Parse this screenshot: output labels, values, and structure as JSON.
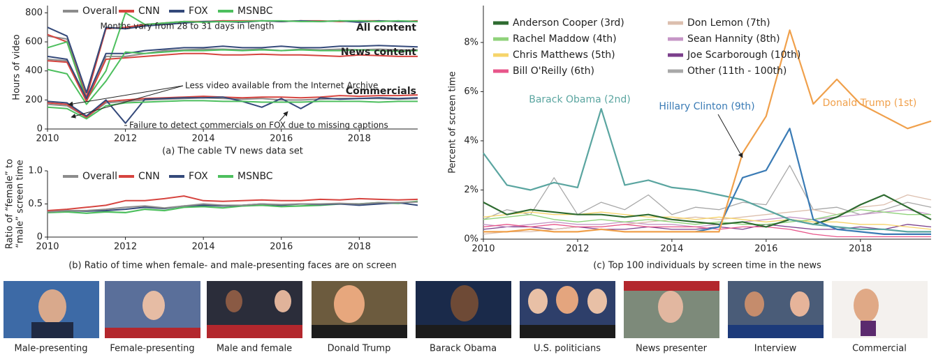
{
  "chart_data": [
    {
      "type": "line",
      "caption": "(a) The cable TV news data set",
      "ylabel": "Hours of video",
      "x": [
        2010,
        2010.5,
        2011,
        2011.5,
        2012,
        2012.5,
        2013,
        2013.5,
        2014,
        2014.5,
        2015,
        2015.5,
        2016,
        2016.5,
        2017,
        2017.5,
        2018,
        2018.5,
        2019,
        2019.5
      ],
      "xlim": [
        2010,
        2019.5
      ],
      "xticks": [
        2010,
        2012,
        2014,
        2016,
        2018
      ],
      "ylim": [
        0,
        850
      ],
      "yticks": [
        0,
        200,
        400,
        600,
        800
      ],
      "legend": [
        {
          "name": "Overall",
          "color": "#8c8c8c"
        },
        {
          "name": "CNN",
          "color": "#d6443f"
        },
        {
          "name": "FOX",
          "color": "#34497a"
        },
        {
          "name": "MSNBC",
          "color": "#4dbf5e"
        }
      ],
      "groups": [
        {
          "label": "All content",
          "series": [
            [
              640,
              620,
              250,
              700,
              690,
              720,
              730,
              740,
              740,
              745,
              740,
              745,
              740,
              745,
              740,
              745,
              740,
              740,
              745,
              740
            ],
            [
              650,
              600,
              220,
              690,
              700,
              720,
              730,
              740,
              740,
              745,
              745,
              745,
              740,
              745,
              745,
              740,
              745,
              745,
              740,
              745
            ],
            [
              700,
              640,
              250,
              700,
              690,
              710,
              720,
              730,
              740,
              740,
              735,
              745,
              740,
              745,
              740,
              745,
              735,
              745,
              740,
              740
            ],
            [
              560,
              600,
              200,
              400,
              800,
              720,
              730,
              740,
              735,
              740,
              740,
              745,
              745,
              740,
              740,
              745,
              745,
              740,
              745,
              740
            ]
          ]
        },
        {
          "label": "News content",
          "series": [
            [
              480,
              470,
              200,
              500,
              500,
              520,
              540,
              545,
              550,
              550,
              545,
              550,
              540,
              550,
              545,
              550,
              545,
              550,
              545,
              545
            ],
            [
              470,
              460,
              190,
              480,
              490,
              500,
              510,
              520,
              520,
              510,
              510,
              515,
              510,
              510,
              505,
              500,
              510,
              505,
              500,
              500
            ],
            [
              500,
              480,
              210,
              520,
              520,
              540,
              550,
              560,
              560,
              570,
              560,
              560,
              570,
              560,
              560,
              570,
              570,
              575,
              570,
              565
            ],
            [
              410,
              380,
              170,
              330,
              530,
              520,
              530,
              540,
              540,
              545,
              540,
              545,
              540,
              545,
              540,
              540,
              545,
              540,
              535,
              540
            ]
          ]
        },
        {
          "label": "Commercials",
          "series": [
            [
              170,
              160,
              80,
              180,
              190,
              200,
              205,
              210,
              215,
              210,
              205,
              210,
              200,
              200,
              205,
              210,
              210,
              210,
              205,
              210
            ],
            [
              180,
              170,
              80,
              190,
              200,
              210,
              215,
              220,
              225,
              220,
              215,
              220,
              220,
              215,
              220,
              230,
              225,
              230,
              230,
              235
            ],
            [
              190,
              180,
              90,
              200,
              40,
              205,
              210,
              215,
              215,
              220,
              190,
              150,
              210,
              140,
              215,
              205,
              210,
              215,
              210,
              215
            ],
            [
              150,
              140,
              70,
              160,
              180,
              185,
              190,
              195,
              195,
              190,
              190,
              185,
              185,
              185,
              190,
              190,
              190,
              185,
              190,
              190
            ]
          ]
        }
      ],
      "annotations": [
        "Months vary from 28 to 31 days in length",
        "Less video available from the Internet Archive",
        "Failure to detect commercials on FOX due to missing captions"
      ]
    },
    {
      "type": "line",
      "caption": "(b) Ratio of time when female- and male-presenting faces are on screen",
      "ylabel": [
        "Ratio of “female” to",
        "“male” screen time"
      ],
      "x": [
        2010,
        2010.5,
        2011,
        2011.5,
        2012,
        2012.5,
        2013,
        2013.5,
        2014,
        2014.5,
        2015,
        2015.5,
        2016,
        2016.5,
        2017,
        2017.5,
        2018,
        2018.5,
        2019,
        2019.5
      ],
      "xlim": [
        2010,
        2019.5
      ],
      "xticks": [
        2010,
        2012,
        2014,
        2016,
        2018
      ],
      "ylim": [
        0,
        1
      ],
      "yticks": [
        0,
        0.5,
        {
          "value": 1,
          "label": "1.0"
        }
      ],
      "series": [
        {
          "name": "Overall",
          "color": "#8c8c8c",
          "values": [
            0.38,
            0.4,
            0.4,
            0.42,
            0.45,
            0.47,
            0.44,
            0.47,
            0.5,
            0.48,
            0.48,
            0.5,
            0.49,
            0.5,
            0.5,
            0.51,
            0.5,
            0.52,
            0.52,
            0.53
          ]
        },
        {
          "name": "CNN",
          "color": "#d6443f",
          "values": [
            0.4,
            0.42,
            0.45,
            0.48,
            0.55,
            0.55,
            0.58,
            0.62,
            0.55,
            0.54,
            0.55,
            0.56,
            0.55,
            0.55,
            0.57,
            0.56,
            0.58,
            0.57,
            0.56,
            0.57
          ]
        },
        {
          "name": "FOX",
          "color": "#34497a",
          "values": [
            0.38,
            0.4,
            0.39,
            0.4,
            0.42,
            0.45,
            0.43,
            0.47,
            0.48,
            0.47,
            0.48,
            0.5,
            0.48,
            0.5,
            0.49,
            0.5,
            0.48,
            0.5,
            0.52,
            0.48
          ]
        },
        {
          "name": "MSNBC",
          "color": "#4dbf5e",
          "values": [
            0.37,
            0.38,
            0.36,
            0.38,
            0.37,
            0.42,
            0.4,
            0.45,
            0.46,
            0.44,
            0.47,
            0.48,
            0.46,
            0.47,
            0.48,
            0.5,
            0.5,
            0.52,
            0.51,
            0.54
          ]
        }
      ]
    },
    {
      "type": "line",
      "caption": "(c) Top 100 individuals by screen time in the news",
      "ylabel": "Percent of screen time",
      "x": [
        2010,
        2010.5,
        2011,
        2011.5,
        2012,
        2012.5,
        2013,
        2013.5,
        2014,
        2014.5,
        2015,
        2015.5,
        2016,
        2016.5,
        2017,
        2017.5,
        2018,
        2018.5,
        2019,
        2019.5
      ],
      "xlim": [
        2010,
        2019.5
      ],
      "xticks": [
        2010,
        2012,
        2014,
        2016,
        2018
      ],
      "ylim": [
        0,
        9.5
      ],
      "yticks": [
        {
          "value": 0,
          "label": "0%"
        },
        {
          "value": 2,
          "label": "2%"
        },
        {
          "value": 4,
          "label": "4%"
        },
        {
          "value": 6,
          "label": "6%"
        },
        {
          "value": 8,
          "label": "8%"
        }
      ],
      "series": [
        {
          "name": "Donald Trump (1st)",
          "color": "#f0a04b",
          "label_in_plot": true,
          "values": [
            0.3,
            0.3,
            0.4,
            0.3,
            0.3,
            0.4,
            0.3,
            0.3,
            0.3,
            0.3,
            0.3,
            3.5,
            5.0,
            8.5,
            5.5,
            6.5,
            5.5,
            5.0,
            4.5,
            4.8
          ]
        },
        {
          "name": "Hillary Clinton (9th)",
          "color": "#3a7bb5",
          "label_in_plot": true,
          "values": [
            null,
            null,
            null,
            null,
            null,
            null,
            null,
            null,
            null,
            0.3,
            0.5,
            2.5,
            2.8,
            4.5,
            0.8,
            0.4,
            0.3,
            0.2,
            0.2,
            0.2
          ]
        },
        {
          "name": "Barack Obama (2nd)",
          "color": "#5aa5a0",
          "label_in_plot": true,
          "values": [
            3.5,
            2.2,
            2.0,
            2.3,
            2.1,
            5.3,
            2.2,
            2.4,
            2.1,
            2.0,
            1.8,
            1.6,
            1.2,
            0.8,
            0.6,
            0.5,
            0.4,
            0.4,
            0.3,
            0.3
          ]
        },
        {
          "name": "Anderson Cooper (3rd)",
          "color": "#2e6b30",
          "values": [
            1.5,
            1.0,
            1.2,
            1.1,
            1.0,
            1.0,
            0.9,
            1.0,
            0.8,
            0.7,
            0.6,
            0.7,
            0.5,
            0.8,
            0.6,
            0.9,
            1.4,
            1.8,
            1.3,
            0.8
          ]
        },
        {
          "name": "Rachel Maddow (4th)",
          "color": "#8fd27a",
          "values": [
            0.8,
            0.9,
            1.0,
            0.8,
            0.7,
            0.8,
            0.7,
            0.8,
            0.7,
            0.6,
            0.7,
            0.6,
            0.6,
            0.7,
            0.8,
            1.0,
            1.2,
            1.1,
            1.0,
            1.0
          ]
        },
        {
          "name": "Chris Matthews (5th)",
          "color": "#f6d46a",
          "values": [
            0.9,
            1.0,
            1.1,
            1.0,
            1.0,
            1.1,
            1.0,
            0.9,
            0.9,
            0.8,
            0.9,
            0.8,
            0.7,
            0.8,
            0.7,
            0.7,
            0.6,
            0.6,
            0.5,
            0.4
          ]
        },
        {
          "name": "Bill O'Reilly (6th)",
          "color": "#e8558a",
          "values": [
            0.5,
            0.6,
            0.5,
            0.6,
            0.5,
            0.5,
            0.6,
            0.5,
            0.5,
            0.5,
            0.4,
            0.5,
            0.5,
            0.4,
            0.2,
            0.1,
            0.1,
            0.1,
            0.1,
            0.1
          ]
        },
        {
          "name": "Don Lemon (7th)",
          "color": "#dcbfae",
          "values": [
            0.2,
            0.3,
            0.3,
            0.4,
            0.5,
            0.5,
            0.6,
            0.7,
            0.8,
            0.9,
            0.8,
            0.9,
            1.0,
            1.1,
            1.2,
            1.0,
            1.3,
            1.4,
            1.8,
            1.6
          ]
        },
        {
          "name": "Sean Hannity (8th)",
          "color": "#c596c6",
          "values": [
            0.6,
            0.5,
            0.6,
            0.7,
            0.6,
            0.6,
            0.7,
            0.6,
            0.6,
            0.5,
            0.6,
            0.7,
            0.8,
            0.9,
            0.8,
            0.9,
            1.0,
            1.1,
            1.2,
            1.0
          ]
        },
        {
          "name": "Joe Scarborough (10th)",
          "color": "#7b3f8c",
          "values": [
            0.4,
            0.5,
            0.5,
            0.4,
            0.5,
            0.4,
            0.4,
            0.5,
            0.4,
            0.4,
            0.5,
            0.4,
            0.6,
            0.5,
            0.4,
            0.4,
            0.5,
            0.4,
            0.6,
            0.5
          ]
        },
        {
          "name": "Other (11th - 100th)",
          "color": "#a8a8a8",
          "values": [
            0.8,
            1.2,
            1.0,
            2.5,
            1.0,
            1.5,
            1.2,
            1.8,
            1.0,
            1.3,
            1.2,
            1.5,
            1.4,
            3.0,
            1.2,
            1.3,
            1.0,
            1.2,
            1.5,
            1.3
          ]
        }
      ]
    }
  ],
  "thumbnails": [
    "Male-presenting",
    "Female-presenting",
    "Male and female",
    "Donald Trump",
    "Barack Obama",
    "U.S. politicians",
    "News presenter",
    "Interview",
    "Commercial"
  ]
}
